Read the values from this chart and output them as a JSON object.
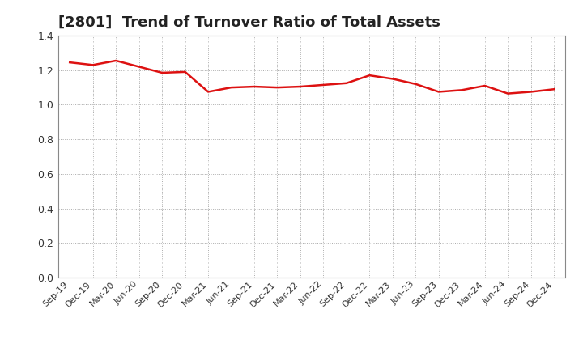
{
  "title": "[2801]  Trend of Turnover Ratio of Total Assets",
  "title_fontsize": 13,
  "title_color": "#222222",
  "x_labels": [
    "Sep-19",
    "Dec-19",
    "Mar-20",
    "Jun-20",
    "Sep-20",
    "Dec-20",
    "Mar-21",
    "Jun-21",
    "Sep-21",
    "Dec-21",
    "Mar-22",
    "Jun-22",
    "Sep-22",
    "Dec-22",
    "Mar-23",
    "Jun-23",
    "Sep-23",
    "Dec-23",
    "Mar-24",
    "Jun-24",
    "Sep-24",
    "Dec-24"
  ],
  "values": [
    1.245,
    1.23,
    1.255,
    1.22,
    1.185,
    1.19,
    1.075,
    1.1,
    1.105,
    1.1,
    1.105,
    1.115,
    1.125,
    1.17,
    1.15,
    1.12,
    1.075,
    1.085,
    1.11,
    1.065,
    1.075,
    1.09
  ],
  "line_color": "#dd1111",
  "line_width": 1.8,
  "ylim": [
    0.0,
    1.4
  ],
  "yticks": [
    0.0,
    0.2,
    0.4,
    0.6,
    0.8,
    1.0,
    1.2,
    1.4
  ],
  "grid_color": "#aaaaaa",
  "grid_style": ":",
  "background_color": "#ffffff",
  "plot_bg_color": "#ffffff",
  "spine_color": "#888888"
}
